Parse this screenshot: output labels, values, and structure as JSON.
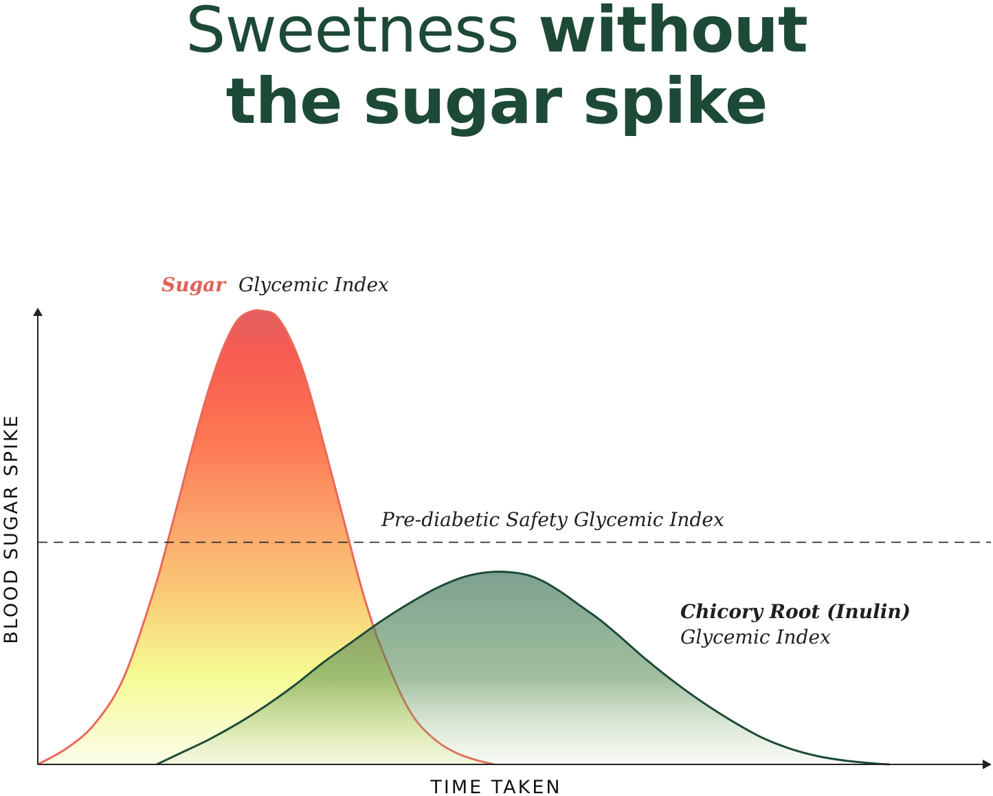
{
  "title": {
    "part1": "Sweetness",
    "part2": "without",
    "part3": "the sugar spike"
  },
  "chart_data": {
    "type": "area",
    "title": "Sweetness without the sugar spike",
    "xlabel": "TIME TAKEN",
    "ylabel": "BLOOD SUGAR SPIKE",
    "grid": false,
    "xlim": [
      0,
      100
    ],
    "ylim": [
      0,
      100
    ],
    "threshold": {
      "label": "Pre-diabetic Safety Glycemic Index",
      "value": 49
    },
    "series": [
      {
        "name_highlight": "Sugar",
        "name_rest": "Glycemic Index",
        "color": "#e8685a",
        "x": [
          0,
          3,
          6,
          9,
          12,
          13.5,
          15,
          16.5,
          18,
          19.5,
          21,
          22.5,
          23.7,
          25,
          26.5,
          28,
          29.5,
          31,
          32.5,
          34,
          35.5,
          37,
          38.5,
          40,
          42,
          44,
          46,
          48
        ],
        "y": [
          0,
          3.5,
          9,
          19,
          37,
          48,
          60,
          72,
          83,
          92,
          98,
          100,
          100,
          99,
          94,
          86,
          75,
          63,
          51,
          39,
          29,
          21,
          14,
          9,
          5,
          2.5,
          1,
          0
        ]
      },
      {
        "name_highlight": "Chicory Root (Inulin)",
        "name_rest": "Glycemic Index",
        "color": "#1d4a36",
        "x": [
          12.5,
          15,
          18,
          21,
          24,
          27,
          30,
          33,
          36,
          39,
          42,
          45,
          48,
          51,
          53,
          55,
          57,
          59,
          61,
          64,
          67,
          70,
          73,
          76,
          79,
          82,
          85,
          88,
          89.5
        ],
        "y": [
          0,
          2.5,
          5.5,
          9,
          13,
          17.5,
          22.5,
          27,
          31.5,
          35.5,
          39,
          41.5,
          42.5,
          42,
          40.5,
          38,
          35,
          32,
          28.5,
          23,
          18,
          13.5,
          9.5,
          6,
          3.5,
          1.8,
          0.8,
          0.2,
          0
        ]
      }
    ],
    "colors": {
      "title": "#1d4a36",
      "sugar_label": "#e06055",
      "threshold_line": "#222222",
      "axis": "#222222"
    }
  }
}
